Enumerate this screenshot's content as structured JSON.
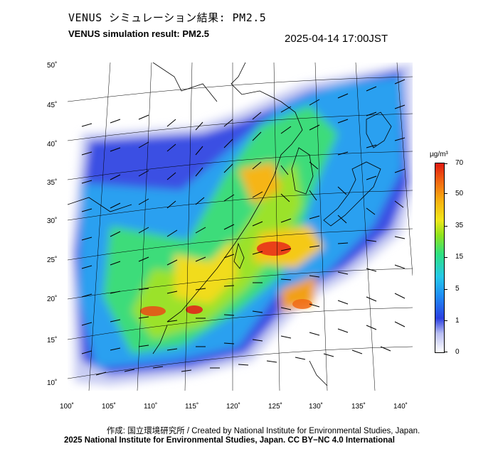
{
  "header": {
    "title_jp": "VENUS シミュレーション結果: PM2.5",
    "title_en": "VENUS simulation result: PM2.5",
    "timestamp": "2025-04-14 17:00JST"
  },
  "map": {
    "lat_labels": [
      "50˚",
      "45˚",
      "40˚",
      "35˚",
      "30˚",
      "25˚",
      "20˚",
      "15˚",
      "10˚"
    ],
    "lon_labels": [
      "100˚",
      "105˚",
      "110˚",
      "115˚",
      "120˚",
      "125˚",
      "130˚",
      "135˚",
      "140˚"
    ],
    "layers": [
      "pm2.5-concentration-field",
      "wind-vector-arrows",
      "coastlines",
      "graticule"
    ]
  },
  "colorbar": {
    "unit": "µg/m³",
    "ticks": [
      "70",
      "50",
      "35",
      "15",
      "5",
      "1",
      "0"
    ],
    "colors": [
      "#ffffff",
      "#b8bdf2",
      "#2b3fe0",
      "#1e8df5",
      "#25c8e8",
      "#2ee080",
      "#8fe31d",
      "#f1e61a",
      "#f7b20f",
      "#f26a10",
      "#e01a10"
    ]
  },
  "footer": {
    "credit": "作成: 国立環境研究所 / Created by National Institute for Environmental Studies, Japan.",
    "copyright": "2025 National Institute for Environmental Studies, Japan. CC BY−NC 4.0 International"
  }
}
